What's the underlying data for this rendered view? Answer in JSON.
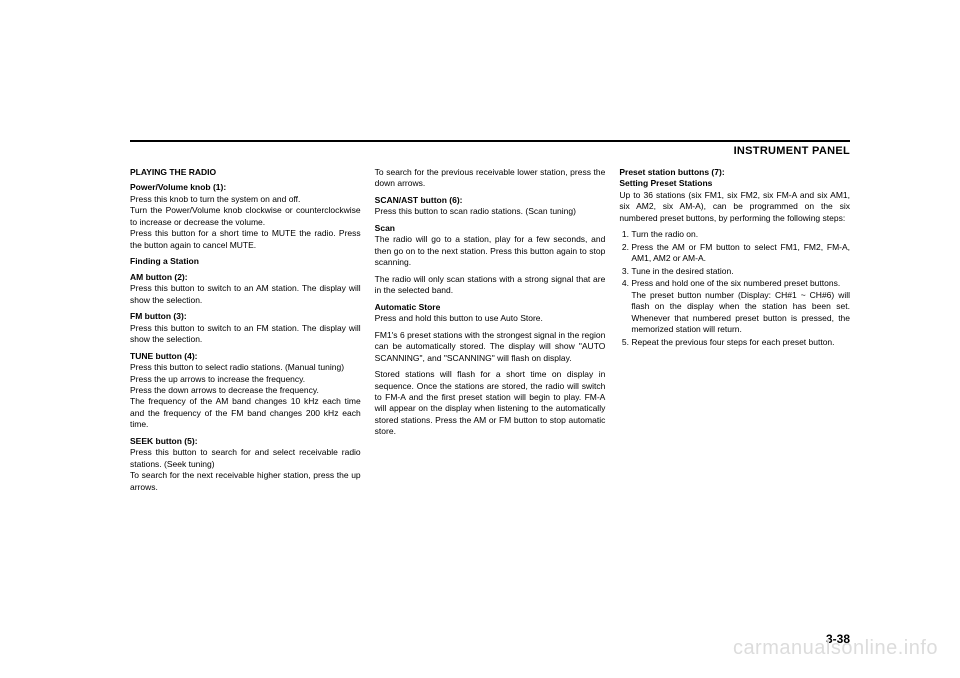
{
  "header": {
    "title": "INSTRUMENT PANEL"
  },
  "col1": {
    "h1": "PLAYING THE RADIO",
    "s1_title": "Power/Volume knob (1):",
    "s1_p1": "Press this knob to turn the system on and off.",
    "s1_p2": "Turn the Power/Volume knob clockwise or counterclockwise to increase or decrease the volume.",
    "s1_p3": "Press this button for a short time to MUTE the radio. Press the button again to cancel MUTE.",
    "h2": "Finding a Station",
    "s2_title": "AM button (2):",
    "s2_p1": "Press this button to switch to an AM station. The display will show the selection.",
    "s3_title": "FM button (3):",
    "s3_p1": "Press this button to switch to an FM station. The display will show the selection.",
    "s4_title": "TUNE button (4):",
    "s4_p1": "Press this button to select radio stations. (Manual tuning)",
    "s4_p2": "Press the up arrows to increase the frequency.",
    "s4_p3": "Press the down arrows to decrease the frequency.",
    "s4_p4": "The frequency of the AM band changes 10 kHz each time and the frequency of the FM band changes 200 kHz each time.",
    "s5_title": "SEEK button (5):",
    "s5_p1": "Press this button to search for and select receivable radio stations. (Seek tuning)",
    "s5_p2": "To search for the next receivable higher station, press the up arrows."
  },
  "col2": {
    "p1": "To search for the previous receivable lower station, press the down arrows.",
    "s1_title": "SCAN/AST button (6):",
    "s1_p1": "Press this button to scan radio stations. (Scan tuning)",
    "s2_title": "Scan",
    "s2_p1": "The radio will go to a station, play for a few seconds, and then go on to the next station. Press this button again to stop scanning.",
    "s2_p2": "The radio will only scan stations with a strong signal that are in the selected band.",
    "s3_title": "Automatic Store",
    "s3_p1": "Press and hold this button to use Auto Store.",
    "s3_p2": "FM1's 6 preset stations with the strongest signal in the region can be automatically stored. The display will show \"AUTO SCANNING\", and \"SCANNING\" will flash on display.",
    "s3_p3": "Stored stations will flash for a short time on display in sequence. Once the stations are stored, the radio will switch to FM-A and the first preset station will begin to play. FM-A will appear on the display when listening to the automatically stored stations. Press the AM or FM button to stop automatic store."
  },
  "col3": {
    "s1_title": "Preset station buttons (7):",
    "s2_title": "Setting Preset Stations",
    "s2_p1": "Up to 36 stations (six FM1, six FM2, six FM-A and six AM1, six AM2, six AM-A), can be programmed on the six numbered preset buttons, by performing the following steps:",
    "li1": "Turn the radio on.",
    "li2": "Press the AM or FM button to select FM1, FM2, FM-A, AM1, AM2 or AM-A.",
    "li3": "Tune in the desired station.",
    "li4": "Press and hold one of the six numbered preset buttons.",
    "li4b": "The preset button number (Display: CH#1 ~ CH#6) will flash on the display when the station has been set. Whenever that numbered preset button is pressed, the memorized station will return.",
    "li5": "Repeat the previous four steps for each preset button."
  },
  "pageNumber": "3-38",
  "watermark": "carmanualsonline.info"
}
